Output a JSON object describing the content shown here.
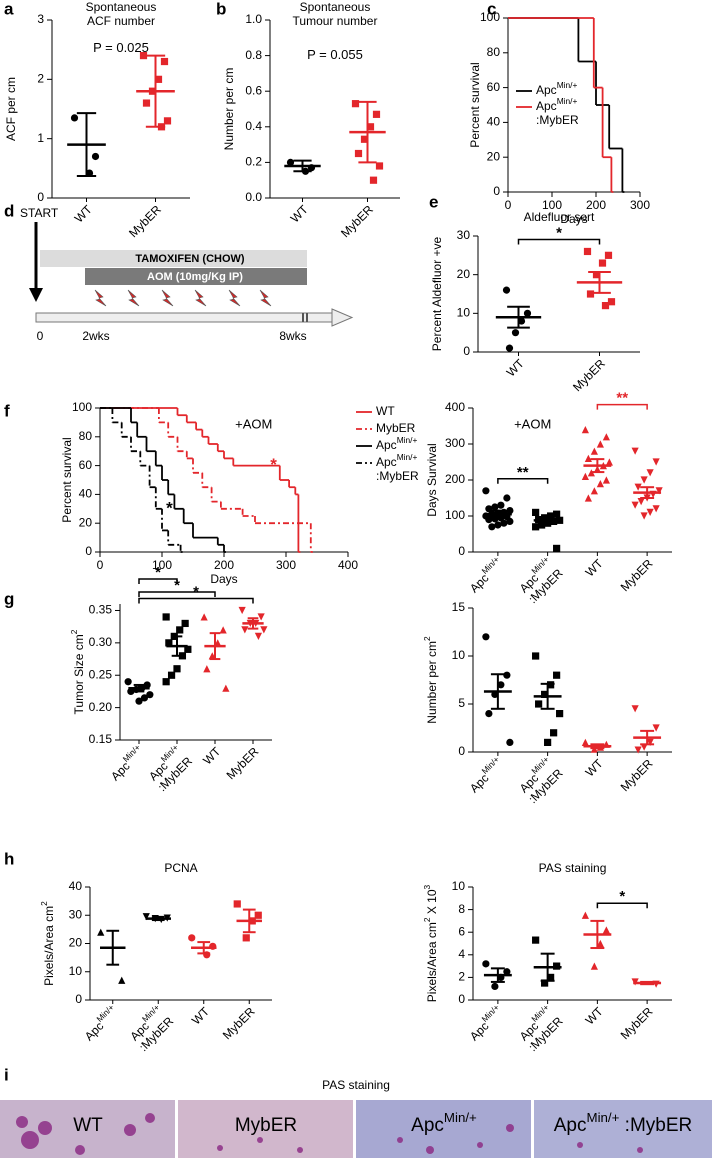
{
  "chart_data": [
    {
      "type": "dot",
      "panel": "a",
      "title": [
        {
          "text": "Spontaneous"
        },
        {
          "text": "ACF number",
          "newline": true
        }
      ],
      "ylabel": "ACF per cm",
      "ylim": [
        0,
        3
      ],
      "yticks": [
        0,
        1,
        2,
        3
      ],
      "annotations": [
        {
          "text": "P = 0.025",
          "color": "#000000"
        }
      ],
      "groups": [
        {
          "name": "WT",
          "color": "#000000",
          "marker": "circle",
          "points": [
            1.35,
            0.7,
            0.42
          ],
          "mean": 0.9,
          "sd": 0.53
        },
        {
          "name": "MybER",
          "color": "#e3262b",
          "marker": "square",
          "points": [
            2.4,
            2.3,
            2.0,
            1.8,
            1.6,
            1.3,
            1.2
          ],
          "mean": 1.8,
          "sd": 0.6
        }
      ]
    },
    {
      "type": "dot",
      "panel": "b",
      "title": [
        {
          "text": "Spontaneous"
        },
        {
          "text": "Tumour number",
          "newline": true
        }
      ],
      "ylabel": "Number per cm",
      "ylim": [
        0,
        1.0
      ],
      "yticks": [
        {
          "value": 0,
          "label": "0.0"
        },
        0.2,
        0.4,
        0.6,
        0.8,
        {
          "value": 1,
          "label": "1.0"
        }
      ],
      "annotations": [
        {
          "text": "P = 0.055",
          "color": "#000000"
        }
      ],
      "groups": [
        {
          "name": "WT",
          "color": "#000000",
          "marker": "circle",
          "points": [
            0.2,
            0.17,
            0.15
          ],
          "mean": 0.18,
          "sd": 0.03
        },
        {
          "name": "MybER",
          "color": "#e3262b",
          "marker": "square",
          "points": [
            0.53,
            0.47,
            0.4,
            0.33,
            0.25,
            0.18,
            0.1
          ],
          "mean": 0.37,
          "sd": 0.17
        }
      ]
    },
    {
      "type": "survival",
      "panel": "c",
      "ylabel": "Percent survival",
      "xlabel": "Days",
      "xlim": [
        0,
        300
      ],
      "xticks": [
        0,
        100,
        200,
        300
      ],
      "ylim": [
        0,
        100
      ],
      "yticks": [
        0,
        20,
        40,
        60,
        80,
        100
      ],
      "legend": "center left",
      "series": [
        {
          "name": [
            {
              "text": "Apc"
            },
            {
              "text": "Min/+",
              "sup": true
            }
          ],
          "color": "#000000",
          "dash": "solid",
          "x": [
            0,
            160,
            200,
            230,
            260
          ],
          "values": [
            100,
            75,
            50,
            25,
            0
          ]
        },
        {
          "name": [
            {
              "text": "Apc"
            },
            {
              "text": "Min/+",
              "sup": true
            },
            {
              "text": ":MybER",
              "newline": true
            }
          ],
          "color": "#e3262b",
          "dash": "solid",
          "x": [
            0,
            195,
            215,
            235
          ],
          "values": [
            100,
            60,
            20,
            0
          ]
        }
      ]
    },
    {
      "type": "dot",
      "panel": "e",
      "title": [
        {
          "text": "Aldefluor sort"
        }
      ],
      "ylabel": "Percent Aldefluor +ve",
      "ylim": [
        0,
        30
      ],
      "yticks": [
        0,
        10,
        20,
        30
      ],
      "brackets": [
        {
          "from": 0,
          "to": 1,
          "label": "*",
          "color": "#000000"
        }
      ],
      "groups": [
        {
          "name": "WT",
          "color": "#000000",
          "marker": "circle",
          "points": [
            16,
            10,
            8,
            5,
            1
          ],
          "mean": 9,
          "sd": 2.7
        },
        {
          "name": "MybER",
          "color": "#e3262b",
          "marker": "square",
          "points": [
            26,
            25,
            23,
            20,
            15,
            13,
            12
          ],
          "mean": 18,
          "sd": 2.7
        }
      ]
    },
    {
      "type": "survival",
      "panel": "f",
      "ylabel": "Percent survival",
      "xlabel": "Days",
      "xlim": [
        0,
        400
      ],
      "xticks": [
        0,
        100,
        200,
        300,
        400
      ],
      "ylim": [
        0,
        100
      ],
      "yticks": [
        0,
        20,
        40,
        60,
        80,
        100
      ],
      "legend": "outside right",
      "annotations": [
        {
          "text": "+AOM",
          "color": "#000000"
        },
        {
          "text": "*",
          "color": "#e3262b"
        },
        {
          "text": "*",
          "color": "#000000"
        }
      ],
      "series": [
        {
          "name": "WT",
          "color": "#e3262b",
          "dash": "solid",
          "x": [
            0,
            125,
            140,
            155,
            165,
            175,
            190,
            200,
            215,
            290,
            305,
            315,
            320
          ],
          "values": [
            100,
            95,
            90,
            85,
            80,
            75,
            70,
            65,
            60,
            50,
            45,
            40,
            0
          ]
        },
        {
          "name": "MybER",
          "color": "#e3262b",
          "dash": "dash-dot",
          "x": [
            0,
            95,
            110,
            125,
            140,
            150,
            165,
            180,
            195,
            230,
            250,
            340
          ],
          "values": [
            100,
            90,
            80,
            70,
            65,
            55,
            45,
            35,
            30,
            25,
            20,
            0
          ]
        },
        {
          "name": [
            {
              "text": "Apc"
            },
            {
              "text": "Min/+",
              "sup": true
            }
          ],
          "color": "#000000",
          "dash": "solid",
          "x": [
            0,
            50,
            60,
            75,
            90,
            100,
            110,
            120,
            135,
            150,
            190,
            200
          ],
          "values": [
            100,
            90,
            80,
            70,
            60,
            50,
            40,
            30,
            20,
            10,
            5,
            0
          ]
        },
        {
          "name": [
            {
              "text": "Apc"
            },
            {
              "text": "Min/+",
              "sup": true
            },
            {
              "text": ":MybER",
              "newline": true
            }
          ],
          "color": "#000000",
          "dash": "dash-dot",
          "x": [
            0,
            20,
            35,
            50,
            65,
            80,
            90,
            100,
            110,
            130
          ],
          "values": [
            100,
            90,
            80,
            70,
            60,
            45,
            30,
            15,
            5,
            0
          ]
        }
      ]
    },
    {
      "type": "dot",
      "panel": "",
      "ylabel": "Days Survival",
      "ylim": [
        0,
        400
      ],
      "yticks": [
        0,
        100,
        200,
        300,
        400
      ],
      "annotations": [
        {
          "text": "+AOM",
          "color": "#000000"
        }
      ],
      "brackets": [
        {
          "from": 0,
          "to": 1,
          "label": "**",
          "color": "#000000"
        },
        {
          "from": 2,
          "to": 3,
          "label": "**",
          "color": "#e3262b"
        }
      ],
      "groups": [
        {
          "name": [
            {
              "text": "Apc"
            },
            {
              "text": "Min/+",
              "sup": true
            }
          ],
          "color": "#000000",
          "marker": "circle",
          "points": [
            170,
            150,
            130,
            125,
            120,
            115,
            110,
            108,
            105,
            100,
            98,
            95,
            92,
            90,
            85,
            80,
            75,
            70
          ],
          "mean": 105,
          "sd": 10
        },
        {
          "name": [
            {
              "text": "Apc"
            },
            {
              "text": "Min/+",
              "sup": true
            },
            {
              "text": ":MybER",
              "newline": true
            }
          ],
          "color": "#000000",
          "marker": "square",
          "points": [
            110,
            105,
            100,
            95,
            90,
            88,
            85,
            80,
            75,
            70,
            10
          ],
          "mean": 88,
          "sd": 8
        },
        {
          "name": "WT",
          "color": "#e3262b",
          "marker": "triangle-up",
          "points": [
            340,
            320,
            300,
            280,
            260,
            250,
            240,
            230,
            220,
            210,
            200,
            190,
            170,
            150
          ],
          "mean": 240,
          "sd": 18
        },
        {
          "name": "MybER",
          "color": "#e3262b",
          "marker": "triangle-down",
          "points": [
            280,
            250,
            220,
            200,
            180,
            170,
            160,
            150,
            140,
            130,
            120,
            110,
            100
          ],
          "mean": 165,
          "sd": 15
        }
      ]
    },
    {
      "type": "dot",
      "panel": "g",
      "ylabel": [
        {
          "text": "Tumor Size cm"
        },
        {
          "text": "2",
          "sup": true
        }
      ],
      "ylim": [
        0.15,
        0.36
      ],
      "yticks": [
        0.15,
        {
          "value": 0.2,
          "label": "0.20"
        },
        0.25,
        {
          "value": 0.3,
          "label": "0.30"
        },
        0.35
      ],
      "brackets": [
        {
          "from": 0,
          "to": 3,
          "label": "*",
          "color": "#000000"
        },
        {
          "from": 0,
          "to": 2,
          "label": "*",
          "color": "#000000"
        },
        {
          "from": 0,
          "to": 1,
          "label": "*",
          "color": "#000000"
        }
      ],
      "groups": [
        {
          "name": [
            {
              "text": "Apc"
            },
            {
              "text": "Min/+",
              "sup": true
            }
          ],
          "color": "#000000",
          "marker": "circle",
          "points": [
            0.24,
            0.235,
            0.23,
            0.228,
            0.225,
            0.22,
            0.215,
            0.21
          ],
          "mean": 0.23,
          "sd": 0.005
        },
        {
          "name": [
            {
              "text": "Apc"
            },
            {
              "text": "Min/+",
              "sup": true
            },
            {
              "text": ":MybER",
              "newline": true
            }
          ],
          "color": "#000000",
          "marker": "square",
          "points": [
            0.34,
            0.33,
            0.32,
            0.31,
            0.3,
            0.29,
            0.28,
            0.26,
            0.25,
            0.24
          ],
          "mean": 0.295,
          "sd": 0.015
        },
        {
          "name": "WT",
          "color": "#e3262b",
          "marker": "triangle-up",
          "points": [
            0.34,
            0.32,
            0.3,
            0.28,
            0.26,
            0.23
          ],
          "mean": 0.295,
          "sd": 0.02
        },
        {
          "name": "MybER",
          "color": "#e3262b",
          "marker": "triangle-down",
          "points": [
            0.35,
            0.34,
            0.33,
            0.33,
            0.32,
            0.32,
            0.31
          ],
          "mean": 0.33,
          "sd": 0.008
        }
      ]
    },
    {
      "type": "dot",
      "panel": "",
      "ylabel": [
        {
          "text": "Number per cm"
        },
        {
          "text": "2",
          "sup": true
        }
      ],
      "ylim": [
        0,
        15
      ],
      "yticks": [
        0,
        5,
        10,
        15
      ],
      "groups": [
        {
          "name": [
            {
              "text": "Apc"
            },
            {
              "text": "Min/+",
              "sup": true
            }
          ],
          "color": "#000000",
          "marker": "circle",
          "points": [
            12,
            8,
            7,
            6,
            4,
            1
          ],
          "mean": 6.3,
          "sd": 1.8
        },
        {
          "name": [
            {
              "text": "Apc"
            },
            {
              "text": "Min/+",
              "sup": true
            },
            {
              "text": ":MybER",
              "newline": true
            }
          ],
          "color": "#000000",
          "marker": "square",
          "points": [
            10,
            8,
            7,
            6,
            5,
            4,
            2,
            1
          ],
          "mean": 5.8,
          "sd": 1.3
        },
        {
          "name": "WT",
          "color": "#e3262b",
          "marker": "triangle-up",
          "points": [
            1,
            0.8,
            0.5,
            0.3
          ],
          "mean": 0.6,
          "sd": 0.2
        },
        {
          "name": "MybER",
          "color": "#e3262b",
          "marker": "triangle-down",
          "points": [
            4.5,
            2.5,
            1,
            0.5,
            0.2
          ],
          "mean": 1.5,
          "sd": 0.7
        }
      ]
    },
    {
      "type": "dot",
      "panel": "h",
      "title": [
        {
          "text": "PCNA"
        }
      ],
      "ylabel": [
        {
          "text": "Pixels/Area cm"
        },
        {
          "text": "2",
          "sup": true
        }
      ],
      "ylim": [
        0,
        40
      ],
      "yticks": [
        0,
        10,
        20,
        30,
        40
      ],
      "groups": [
        {
          "name": [
            {
              "text": "Apc"
            },
            {
              "text": "Min/+",
              "sup": true
            }
          ],
          "color": "#000000",
          "marker": "triangle-up",
          "points": [
            24,
            7
          ],
          "mean": 18.5,
          "sd": 6
        },
        {
          "name": [
            {
              "text": "Apc"
            },
            {
              "text": "Min/+",
              "sup": true
            },
            {
              "text": ":MybER",
              "newline": true
            }
          ],
          "color": "#000000",
          "marker": "triangle-down",
          "points": [
            29.5,
            29,
            28.5,
            28.8
          ],
          "mean": 28.8,
          "sd": 0.5
        },
        {
          "name": "WT",
          "color": "#e3262b",
          "marker": "circle",
          "points": [
            22,
            19,
            16
          ],
          "mean": 18.5,
          "sd": 2
        },
        {
          "name": "MybER",
          "color": "#e3262b",
          "marker": "square",
          "points": [
            34,
            30,
            28,
            22
          ],
          "mean": 28,
          "sd": 4
        }
      ]
    },
    {
      "type": "dot",
      "panel": "",
      "title": [
        {
          "text": "PAS staining"
        }
      ],
      "ylabel": [
        {
          "text": "Pixels/Area cm"
        },
        {
          "text": "2",
          "sup": true
        },
        {
          "text": " X 10"
        },
        {
          "text": "3",
          "sup": true
        }
      ],
      "ylim": [
        0,
        10
      ],
      "yticks": [
        0,
        2,
        4,
        6,
        8,
        10
      ],
      "brackets": [
        {
          "from": 2,
          "to": 3,
          "label": "*",
          "color": "#000000"
        }
      ],
      "groups": [
        {
          "name": [
            {
              "text": "Apc"
            },
            {
              "text": "Min/+",
              "sup": true
            }
          ],
          "color": "#000000",
          "marker": "circle",
          "points": [
            3.2,
            2.5,
            2,
            1.2
          ],
          "mean": 2.2,
          "sd": 0.6
        },
        {
          "name": [
            {
              "text": "Apc"
            },
            {
              "text": "Min/+",
              "sup": true
            },
            {
              "text": ":MybER",
              "newline": true
            }
          ],
          "color": "#000000",
          "marker": "square",
          "points": [
            5.3,
            3,
            2,
            1.5
          ],
          "mean": 2.9,
          "sd": 1.2
        },
        {
          "name": "WT",
          "color": "#e3262b",
          "marker": "triangle-up",
          "points": [
            7.5,
            6.2,
            5,
            3
          ],
          "mean": 5.8,
          "sd": 1.2
        },
        {
          "name": "MybER",
          "color": "#e3262b",
          "marker": "triangle-down",
          "points": [
            1.6,
            1.4
          ],
          "mean": 1.5,
          "sd": 0.1
        }
      ]
    }
  ],
  "diagram": {
    "panel": "d",
    "start": "START",
    "tamoxifen": "TAMOXIFEN (CHOW)",
    "aom": "AOM (10mg/Kg IP)",
    "timeline": [
      "0",
      "2wks",
      "8wks"
    ]
  },
  "image_panel": {
    "panel": "i",
    "title": "PAS staining",
    "labels": [
      "WT",
      "MybER",
      [
        {
          "text": "Apc"
        },
        {
          "text": "Min/+",
          "sup": true
        }
      ],
      [
        {
          "text": "Apc"
        },
        {
          "text": "Min/+",
          "sup": true
        },
        {
          "text": " :MybER"
        }
      ]
    ]
  }
}
